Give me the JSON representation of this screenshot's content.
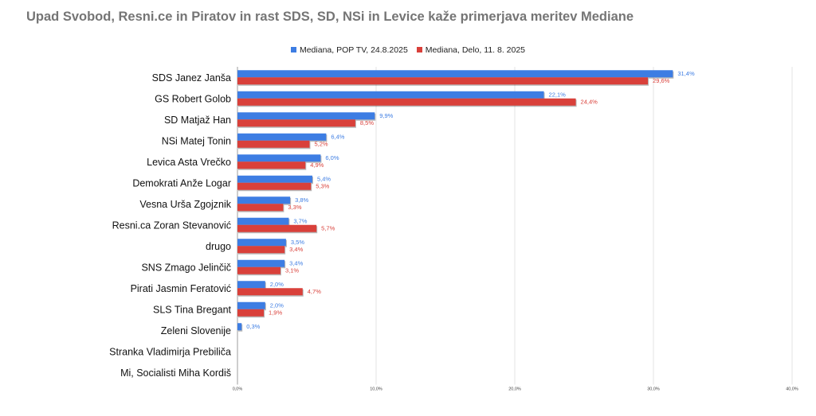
{
  "chart_data": {
    "type": "bar",
    "orientation": "horizontal",
    "title": "Upad Svobod, Resni.ce in Piratov in rast SDS, SD, NSi in Levice kaže primerjava meritev Mediane",
    "categories": [
      "SDS Janez Janša",
      "GS Robert Golob",
      "SD Matjaž Han",
      "NSi Matej Tonin",
      "Levica  Asta Vrečko",
      "Demokrati Anže Logar",
      "Vesna Urša Zgojznik",
      "Resni.ca Zoran Stevanović",
      "drugo",
      "SNS Zmago Jelinčič",
      "Pirati Jasmin Feratović",
      "SLS Tina Bregant",
      "Zeleni Slovenije",
      "Stranka Vladimirja Prebiliča",
      "Mi, Socialisti Miha Kordiš"
    ],
    "series": [
      {
        "name": "Mediana, POP TV, 24.8.2025",
        "color": "#3d7de3",
        "values": [
          31.4,
          22.1,
          9.9,
          6.4,
          6.0,
          5.4,
          3.8,
          3.7,
          3.5,
          3.4,
          2.0,
          2.0,
          0.3,
          null,
          null
        ],
        "labels": [
          "31,4%",
          "22,1%",
          "9,9%",
          "6,4%",
          "6,0%",
          "5,4%",
          "3,8%",
          "3,7%",
          "3,5%",
          "3,4%",
          "2,0%",
          "2,0%",
          "0,3%",
          "",
          ""
        ]
      },
      {
        "name": "Mediana, Delo, 11. 8. 2025",
        "color": "#d9403a",
        "values": [
          29.6,
          24.4,
          8.5,
          5.2,
          4.9,
          5.3,
          3.3,
          5.7,
          3.4,
          3.1,
          4.7,
          1.9,
          null,
          null,
          null
        ],
        "labels": [
          "29,6%",
          "24,4%",
          "8,5%",
          "5,2%",
          "4,9%",
          "5,3%",
          "3,3%",
          "5,7%",
          "3,4%",
          "3,1%",
          "4,7%",
          "1,9%",
          "",
          "",
          ""
        ]
      }
    ],
    "xlim": [
      0,
      40
    ],
    "x_ticks": [
      0,
      10,
      20,
      30,
      40
    ],
    "x_tick_labels": [
      "0,0%",
      "10,0%",
      "20,0%",
      "30,0%",
      "40,0%"
    ],
    "grid": true,
    "legend_position": "top-center"
  }
}
